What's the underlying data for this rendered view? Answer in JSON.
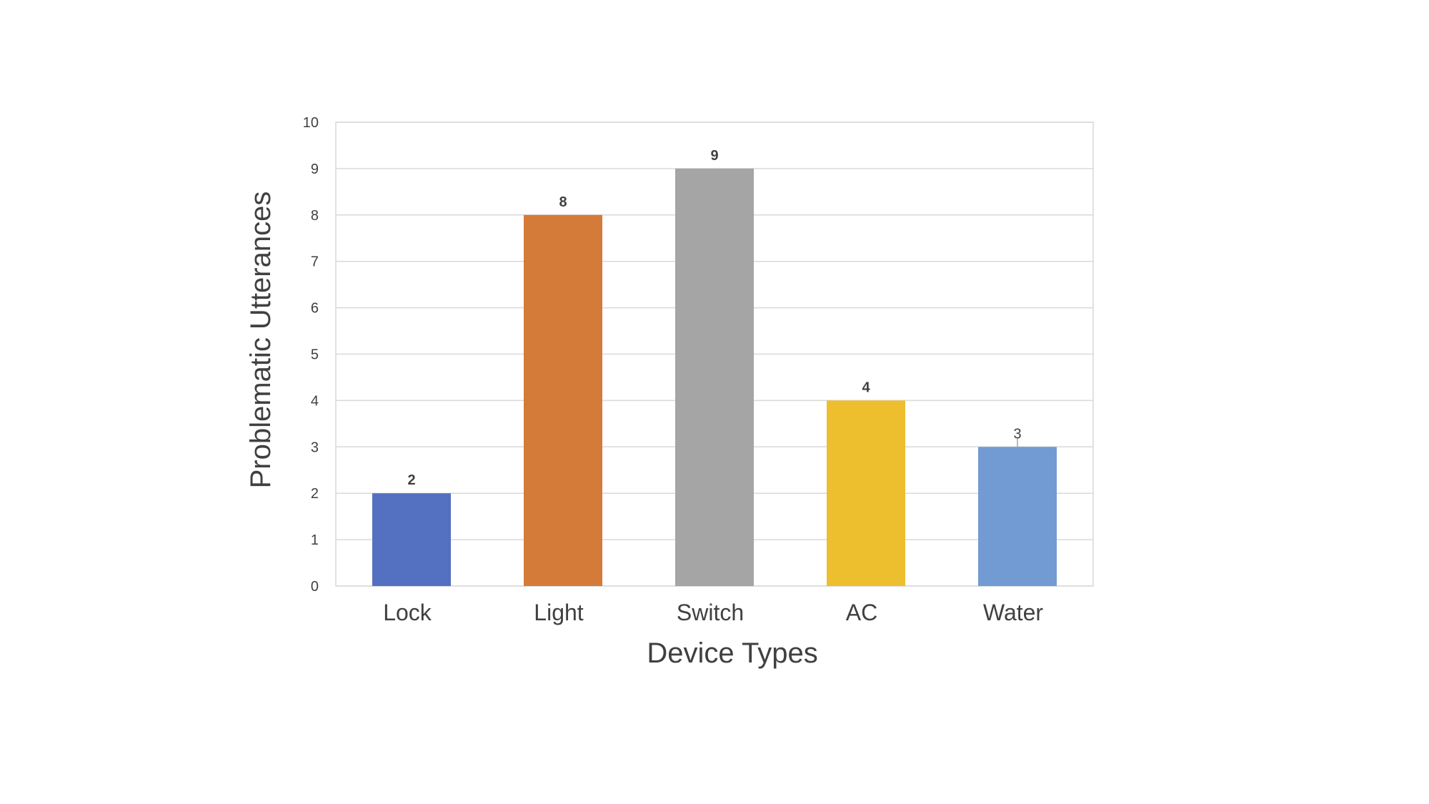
{
  "chart_data": {
    "type": "bar",
    "title": "",
    "xlabel": "Device Types",
    "ylabel": "Problematic Utterances",
    "categories": [
      "Lock",
      "Light",
      "Switch",
      "AC",
      "Water"
    ],
    "values": [
      2,
      8,
      9,
      4,
      3
    ],
    "data_labels": [
      "2",
      "8",
      "9",
      "4",
      "3"
    ],
    "colors": [
      "#5470C1",
      "#D57B39",
      "#A5A5A5",
      "#EDBF2F",
      "#729BD3"
    ],
    "ylim": [
      0,
      10
    ],
    "yticks": [
      0,
      1,
      2,
      3,
      4,
      5,
      6,
      7,
      8,
      9,
      10
    ],
    "grid": true,
    "legend": "none"
  }
}
